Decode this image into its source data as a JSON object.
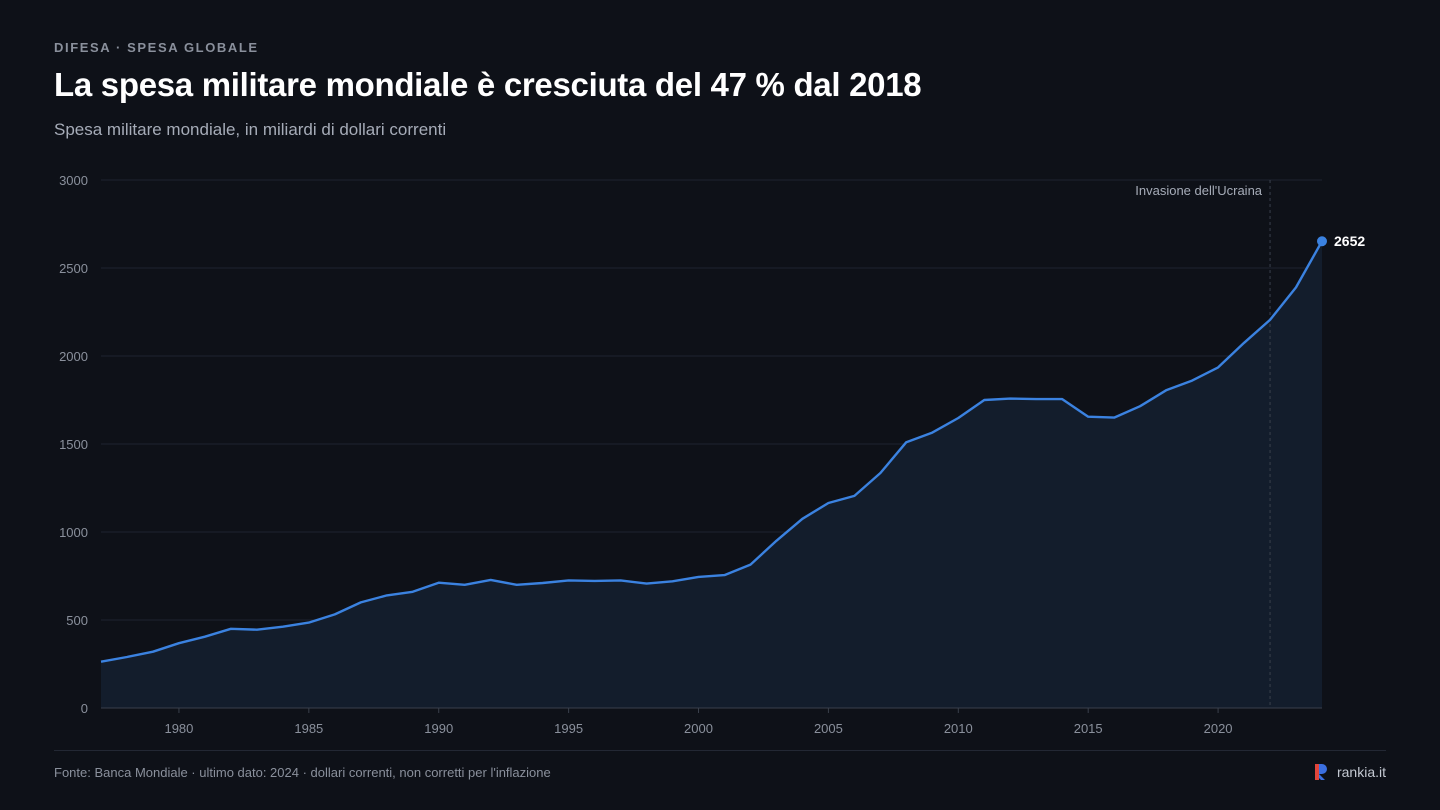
{
  "header": {
    "kicker": "DIFESA · SPESA GLOBALE",
    "title": "La spesa militare mondiale è cresciuta del 47 % dal 2018",
    "subtitle": "Spesa militare mondiale, in miliardi di dollari correnti"
  },
  "footer": {
    "source": "Fonte: Banca Mondiale · ultimo dato: 2024 · dollari correnti, non corretti per l'inflazione",
    "brand": "rankia.it"
  },
  "colors": {
    "background": "#0e1118",
    "line": "#3b82e0",
    "area": "#131d2c",
    "grid": "#1f2430",
    "axis_text": "#8a909c",
    "logo_red": "#e0453a",
    "logo_blue": "#3b6fe0"
  },
  "chart_data": {
    "type": "area",
    "title": "",
    "xlabel": "",
    "ylabel": "",
    "xlim": [
      1977,
      2024
    ],
    "ylim": [
      0,
      3000
    ],
    "y_ticks": [
      "0",
      "500",
      "1000",
      "1500",
      "2000",
      "2500",
      "3000"
    ],
    "x_ticks": [
      "1980",
      "1985",
      "1990",
      "1995",
      "2000",
      "2005",
      "2010",
      "2015",
      "2020"
    ],
    "grid": true,
    "x": [
      1977,
      1978,
      1979,
      1980,
      1981,
      1982,
      1983,
      1984,
      1985,
      1986,
      1987,
      1988,
      1989,
      1990,
      1991,
      1992,
      1993,
      1994,
      1995,
      1996,
      1997,
      1998,
      1999,
      2000,
      2001,
      2002,
      2003,
      2004,
      2005,
      2006,
      2007,
      2008,
      2009,
      2010,
      2011,
      2012,
      2013,
      2014,
      2015,
      2016,
      2017,
      2018,
      2019,
      2020,
      2021,
      2022,
      2023,
      2024
    ],
    "values": [
      263,
      290,
      320,
      368,
      405,
      450,
      445,
      462,
      485,
      532,
      600,
      640,
      660,
      712,
      700,
      728,
      700,
      710,
      725,
      722,
      725,
      707,
      720,
      745,
      755,
      815,
      950,
      1075,
      1165,
      1205,
      1335,
      1510,
      1565,
      1648,
      1750,
      1758,
      1755,
      1755,
      1655,
      1650,
      1715,
      1805,
      1860,
      1935,
      2075,
      2205,
      2390,
      2652
    ],
    "endpoint_label": "2652",
    "annotation": {
      "x": 2022,
      "label": "Invasione dell'Ucraina"
    }
  }
}
